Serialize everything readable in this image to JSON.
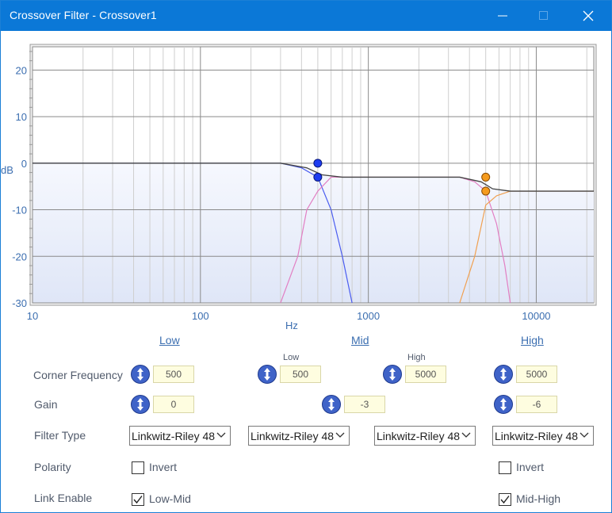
{
  "window": {
    "title": "Crossover Filter - Crossover1",
    "controls": {
      "minimize": "minimize-icon",
      "maximize": "maximize-icon",
      "close": "close-icon"
    }
  },
  "chart_data": {
    "type": "line",
    "x_scale": "log",
    "xlim": [
      10,
      22000
    ],
    "ylim": [
      -30,
      25
    ],
    "xticks": [
      "10",
      "100",
      "1000",
      "10000"
    ],
    "yticks": [
      "20",
      "10",
      "0",
      "-10",
      "-20",
      "-30"
    ],
    "xlabel": "Hz",
    "ylabel": "dB",
    "grid": true,
    "series": [
      {
        "color": "#4a5cf0",
        "points": [
          [
            10,
            0
          ],
          [
            300,
            0
          ],
          [
            400,
            -1
          ],
          [
            500,
            -3
          ],
          [
            600,
            -10
          ],
          [
            700,
            -20
          ],
          [
            800,
            -30
          ]
        ]
      },
      {
        "color": "#e27fc3",
        "points": [
          [
            300,
            -30
          ],
          [
            380,
            -20
          ],
          [
            430,
            -10
          ],
          [
            500,
            -6
          ],
          [
            600,
            -3
          ],
          [
            3500,
            -3
          ],
          [
            4300,
            -4
          ],
          [
            5000,
            -6
          ],
          [
            5800,
            -13
          ],
          [
            6500,
            -22
          ],
          [
            7000,
            -30
          ]
        ]
      },
      {
        "color": "#f0a050",
        "points": [
          [
            3500,
            -30
          ],
          [
            4300,
            -20
          ],
          [
            5000,
            -9
          ],
          [
            5800,
            -7
          ],
          [
            7000,
            -6
          ],
          [
            22000,
            -6
          ]
        ]
      },
      {
        "color": "#444444",
        "points": [
          [
            10,
            0
          ],
          [
            300,
            0
          ],
          [
            430,
            -1
          ],
          [
            530,
            -2.5
          ],
          [
            700,
            -3
          ],
          [
            3500,
            -3
          ],
          [
            4700,
            -4
          ],
          [
            5500,
            -5.5
          ],
          [
            7000,
            -6
          ],
          [
            22000,
            -6
          ]
        ]
      }
    ],
    "markers": [
      {
        "x": 500,
        "y": 0,
        "color": "#1e3cf0"
      },
      {
        "x": 500,
        "y": -3,
        "color": "#1e3cf0"
      },
      {
        "x": 5000,
        "y": -3,
        "color": "#f59b1e"
      },
      {
        "x": 5000,
        "y": -6,
        "color": "#f59b1e"
      }
    ]
  },
  "sections": {
    "low": "Low",
    "mid": "Mid",
    "high": "High"
  },
  "sublabels": {
    "mid_low": "Low",
    "mid_high": "High"
  },
  "rows": {
    "corner_frequency": "Corner Frequency",
    "gain": "Gain",
    "filter_type": "Filter Type",
    "polarity": "Polarity",
    "link_enable": "Link Enable"
  },
  "values": {
    "low_freq": "500",
    "mid_low_freq": "500",
    "mid_high_freq": "5000",
    "high_freq": "5000",
    "low_gain": "0",
    "mid_gain": "-3",
    "high_gain": "-6"
  },
  "filter_types": {
    "low": "Linkwitz-Riley 48",
    "mid_low": "Linkwitz-Riley 48",
    "mid_high": "Linkwitz-Riley 48",
    "high": "Linkwitz-Riley 48"
  },
  "checkboxes": {
    "low_invert": {
      "label": "Invert",
      "checked": false
    },
    "high_invert": {
      "label": "Invert",
      "checked": false
    },
    "low_mid": {
      "label": "Low-Mid",
      "checked": true
    },
    "mid_high": {
      "label": "Mid-High",
      "checked": true
    }
  }
}
